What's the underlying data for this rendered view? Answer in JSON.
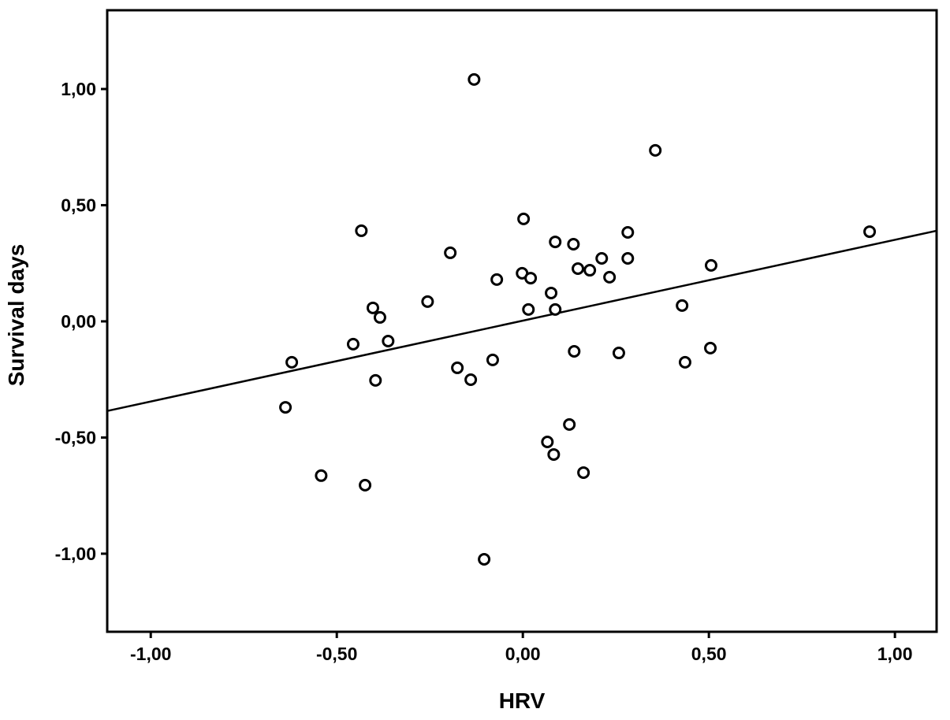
{
  "page": {
    "background": "#ffffff",
    "foreground": "#000000"
  },
  "chart_data": {
    "type": "scatter",
    "title": "",
    "xlabel": "HRV",
    "ylabel": "Survival days",
    "xlim": [
      -1.117,
      1.112
    ],
    "ylim": [
      -1.336,
      1.339
    ],
    "grid": false,
    "legend": "none",
    "x_ticks": [
      -1.0,
      -0.5,
      0.0,
      0.5,
      1.0
    ],
    "x_tick_labels": [
      "-1,00",
      "-0,50",
      "0,00",
      "0,50",
      "1,00"
    ],
    "y_ticks": [
      1.0,
      0.5,
      0.0,
      -0.5,
      -1.0
    ],
    "y_tick_labels": [
      "1,00",
      "0,50",
      "0,00",
      "-0,50",
      "-1,00"
    ],
    "marker": {
      "shape": "open-circle",
      "radius": 6.5,
      "stroke": "#000000",
      "stroke_width": 3,
      "fill": "#ffffff"
    },
    "fit_line": {
      "slope": 0.348,
      "intercept": 0.003,
      "x_range": [
        -1.117,
        1.112
      ],
      "color": "#000000",
      "width": 2.5
    },
    "points": [
      [
        -0.131,
        1.041
      ],
      [
        0.356,
        0.736
      ],
      [
        0.002,
        0.441
      ],
      [
        -0.434,
        0.39
      ],
      [
        -0.195,
        0.295
      ],
      [
        0.282,
        0.383
      ],
      [
        0.087,
        0.342
      ],
      [
        0.136,
        0.332
      ],
      [
        0.212,
        0.271
      ],
      [
        0.282,
        0.271
      ],
      [
        0.506,
        0.241
      ],
      [
        0.932,
        0.386
      ],
      [
        -0.002,
        0.207
      ],
      [
        0.021,
        0.186
      ],
      [
        -0.07,
        0.18
      ],
      [
        0.148,
        0.227
      ],
      [
        0.18,
        0.22
      ],
      [
        0.233,
        0.19
      ],
      [
        0.076,
        0.122
      ],
      [
        0.015,
        0.051
      ],
      [
        0.087,
        0.051
      ],
      [
        -0.256,
        0.085
      ],
      [
        -0.403,
        0.058
      ],
      [
        -0.384,
        0.017
      ],
      [
        0.428,
        0.068
      ],
      [
        -0.456,
        -0.098
      ],
      [
        -0.362,
        -0.085
      ],
      [
        -0.621,
        -0.176
      ],
      [
        -0.176,
        -0.2
      ],
      [
        -0.14,
        -0.251
      ],
      [
        -0.081,
        -0.166
      ],
      [
        -0.396,
        -0.254
      ],
      [
        -0.638,
        -0.37
      ],
      [
        0.138,
        -0.129
      ],
      [
        0.258,
        -0.136
      ],
      [
        0.504,
        -0.115
      ],
      [
        0.436,
        -0.176
      ],
      [
        0.125,
        -0.444
      ],
      [
        0.066,
        -0.519
      ],
      [
        0.083,
        -0.573
      ],
      [
        0.163,
        -0.651
      ],
      [
        -0.542,
        -0.664
      ],
      [
        -0.424,
        -0.705
      ],
      [
        -0.104,
        -1.024
      ]
    ]
  }
}
